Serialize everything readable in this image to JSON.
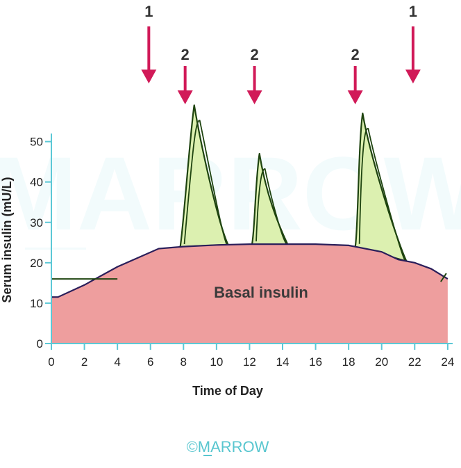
{
  "watermark": "MARROW",
  "copyright": "©MARROW",
  "chart_data": {
    "type": "area",
    "xlabel": "Time of Day",
    "ylabel": "Serum insulin (mU/L)",
    "xlim": [
      0,
      24.3
    ],
    "ylim": [
      0,
      52
    ],
    "x_ticks": [
      "0",
      "2",
      "4",
      "6",
      "8",
      "10",
      "12",
      "14",
      "16",
      "18",
      "20",
      "22",
      "24"
    ],
    "y_ticks": [
      "0",
      "10",
      "20",
      "30",
      "40",
      "50"
    ],
    "basal": {
      "name": "Basal insulin",
      "x": [
        0,
        0.4,
        2,
        4,
        6.5,
        8,
        10,
        12,
        14,
        16,
        18,
        20,
        21,
        22,
        23,
        24
      ],
      "values": [
        11.5,
        11.5,
        14.5,
        19,
        23.5,
        24,
        24.4,
        24.6,
        24.6,
        24.6,
        24.3,
        22.7,
        20.8,
        20,
        18.5,
        16
      ]
    },
    "background_line": {
      "x": [
        0,
        4
      ],
      "values": [
        16,
        16
      ]
    },
    "bolus_peaks": [
      {
        "start": 7.8,
        "peak_x": 8.65,
        "peak": 59,
        "end": 10.7
      },
      {
        "start": 12.15,
        "peak_x": 12.6,
        "peak": 47,
        "end": 14.3
      },
      {
        "start": 18.4,
        "peak_x": 18.85,
        "peak": 57,
        "end": 21.5
      }
    ],
    "arrows": [
      {
        "label": "1",
        "x": 5.9
      },
      {
        "label": "2",
        "x": 8.1
      },
      {
        "label": "2",
        "x": 12.3
      },
      {
        "label": "2",
        "x": 18.4
      },
      {
        "label": "1",
        "x": 21.9
      }
    ],
    "colors": {
      "basal_fill": "#ee9e9e",
      "bolus_fill": "#dcf0b0",
      "curve": "#1f4410",
      "basal_outline": "#2a1e5a",
      "axis": "#5cc8d6",
      "arrow": "#d11a58"
    }
  }
}
